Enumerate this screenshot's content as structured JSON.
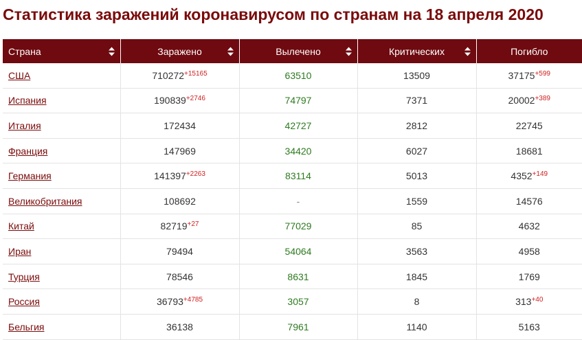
{
  "title": "Статистика заражений коронавирусом по странам на 18 апреля 2020",
  "columns": [
    "Страна",
    "Заражено",
    "Вылечено",
    "Критических",
    "Погибло"
  ],
  "colors": {
    "header_bg": "#6e0a10",
    "title": "#7a0a0a",
    "recovered": "#2d7a1f",
    "delta": "#d02020"
  },
  "rows": [
    {
      "country": "США",
      "infected": "710272",
      "infected_delta": "+15165",
      "recovered": "63510",
      "critical": "13509",
      "deaths": "37175",
      "deaths_delta": "+599"
    },
    {
      "country": "Испания",
      "infected": "190839",
      "infected_delta": "+2746",
      "recovered": "74797",
      "critical": "7371",
      "deaths": "20002",
      "deaths_delta": "+389"
    },
    {
      "country": "Италия",
      "infected": "172434",
      "infected_delta": "",
      "recovered": "42727",
      "critical": "2812",
      "deaths": "22745",
      "deaths_delta": ""
    },
    {
      "country": "Франция",
      "infected": "147969",
      "infected_delta": "",
      "recovered": "34420",
      "critical": "6027",
      "deaths": "18681",
      "deaths_delta": ""
    },
    {
      "country": "Германия",
      "infected": "141397",
      "infected_delta": "+2263",
      "recovered": "83114",
      "critical": "5013",
      "deaths": "4352",
      "deaths_delta": "+149"
    },
    {
      "country": "Великобритания",
      "infected": "108692",
      "infected_delta": "",
      "recovered": "-",
      "critical": "1559",
      "deaths": "14576",
      "deaths_delta": ""
    },
    {
      "country": "Китай",
      "infected": "82719",
      "infected_delta": "+27",
      "recovered": "77029",
      "critical": "85",
      "deaths": "4632",
      "deaths_delta": ""
    },
    {
      "country": "Иран",
      "infected": "79494",
      "infected_delta": "",
      "recovered": "54064",
      "critical": "3563",
      "deaths": "4958",
      "deaths_delta": ""
    },
    {
      "country": "Турция",
      "infected": "78546",
      "infected_delta": "",
      "recovered": "8631",
      "critical": "1845",
      "deaths": "1769",
      "deaths_delta": ""
    },
    {
      "country": "Россия",
      "infected": "36793",
      "infected_delta": "+4785",
      "recovered": "3057",
      "critical": "8",
      "deaths": "313",
      "deaths_delta": "+40"
    },
    {
      "country": "Бельгия",
      "infected": "36138",
      "infected_delta": "",
      "recovered": "7961",
      "critical": "1140",
      "deaths": "5163",
      "deaths_delta": ""
    }
  ]
}
